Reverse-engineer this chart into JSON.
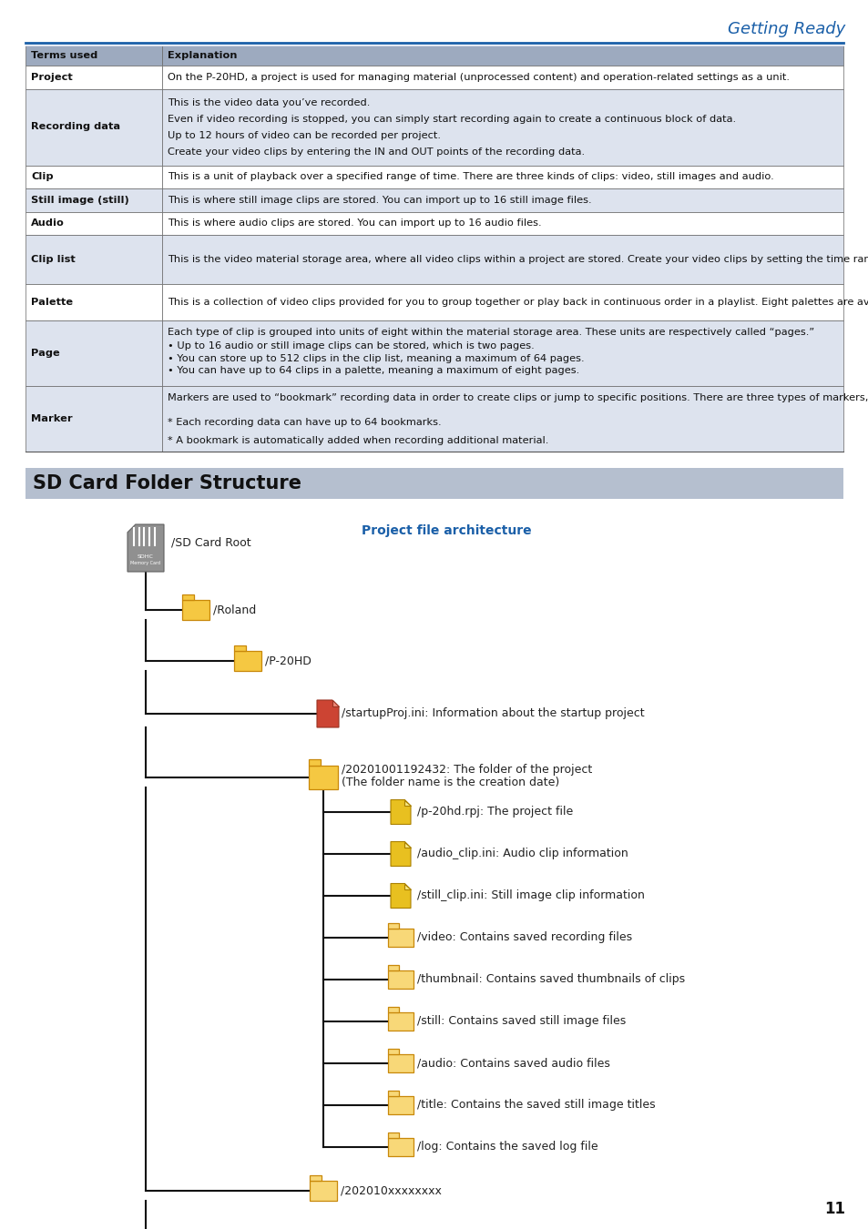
{
  "page_title": "Getting Ready",
  "page_number": "11",
  "section_title": "SD Card Folder Structure",
  "table_header": [
    "Terms used",
    "Explanation"
  ],
  "table_rows": [
    {
      "term": "Project",
      "lines": [
        "On the P-20HD, a project is used for managing material (unprocessed content) and operation-related settings as a unit."
      ],
      "shaded": false
    },
    {
      "term": "Recording data",
      "lines": [
        "This is the video data you’ve recorded.",
        "Even if video recording is stopped, you can simply start recording again to create a continuous block of data.",
        "Up to 12 hours of video can be recorded per project.",
        "Create your video clips by entering the IN and OUT points of the recording data."
      ],
      "shaded": true
    },
    {
      "term": "Clip",
      "lines": [
        "This is a unit of playback over a specified range of time. There are three kinds of clips: video, still images and audio."
      ],
      "shaded": false
    },
    {
      "term": "Still image (still)",
      "lines": [
        "This is where still image clips are stored. You can import up to 16 still image files."
      ],
      "shaded": true
    },
    {
      "term": "Audio",
      "lines": [
        "This is where audio clips are stored. You can import up to 16 audio files."
      ],
      "shaded": false
    },
    {
      "term": "Clip list",
      "lines": [
        "This is the video material storage area, where all video clips within a project are stored. Create your video clips by setting the time ranges from recording data. The video clips you create are registered in the clip list. Add these clips from the clip list to the palette as necessary to manage and play them back."
      ],
      "shaded": true
    },
    {
      "term": "Palette",
      "lines": [
        "This is a collection of video clips provided for you to group together or play back in continuous order in a playlist. Eight palettes are available for each project."
      ],
      "shaded": false
    },
    {
      "term": "Page",
      "lines": [
        "Each type of clip is grouped into units of eight within the material storage area. These units are respectively called “pages.”",
        "• Up to 16 audio or still image clips can be stored, which is two pages.",
        "• You can store up to 512 clips in the clip list, meaning a maximum of 64 pages.",
        "• You can have up to 64 clips in a palette, meaning a maximum of eight pages."
      ],
      "shaded": true
    },
    {
      "term": "Marker",
      "lines": [
        "Markers are used to “bookmark” recording data in order to create clips or jump to specific positions. There are three types of markers, “IN,” “OUT” and “BOOKMARK.”",
        "* Each recording data can have up to 64 bookmarks.",
        "* A bookmark is automatically added when recording additional material."
      ],
      "shaded": true
    }
  ],
  "header_bg": "#9daabf",
  "row_bg_shaded": "#dde3ee",
  "row_bg_white": "#ffffff",
  "title_color": "#1a5fa8",
  "section_bg": "#b5bfcf",
  "tree_label_color": "#2c2c2c",
  "project_arch_color": "#1a5fa8",
  "folder_light": "#f5c842",
  "folder_dark": "#e8a020",
  "file_red": "#cc4433",
  "file_yellow": "#f0c030",
  "line_color": "#000000",
  "background_color": "#ffffff"
}
